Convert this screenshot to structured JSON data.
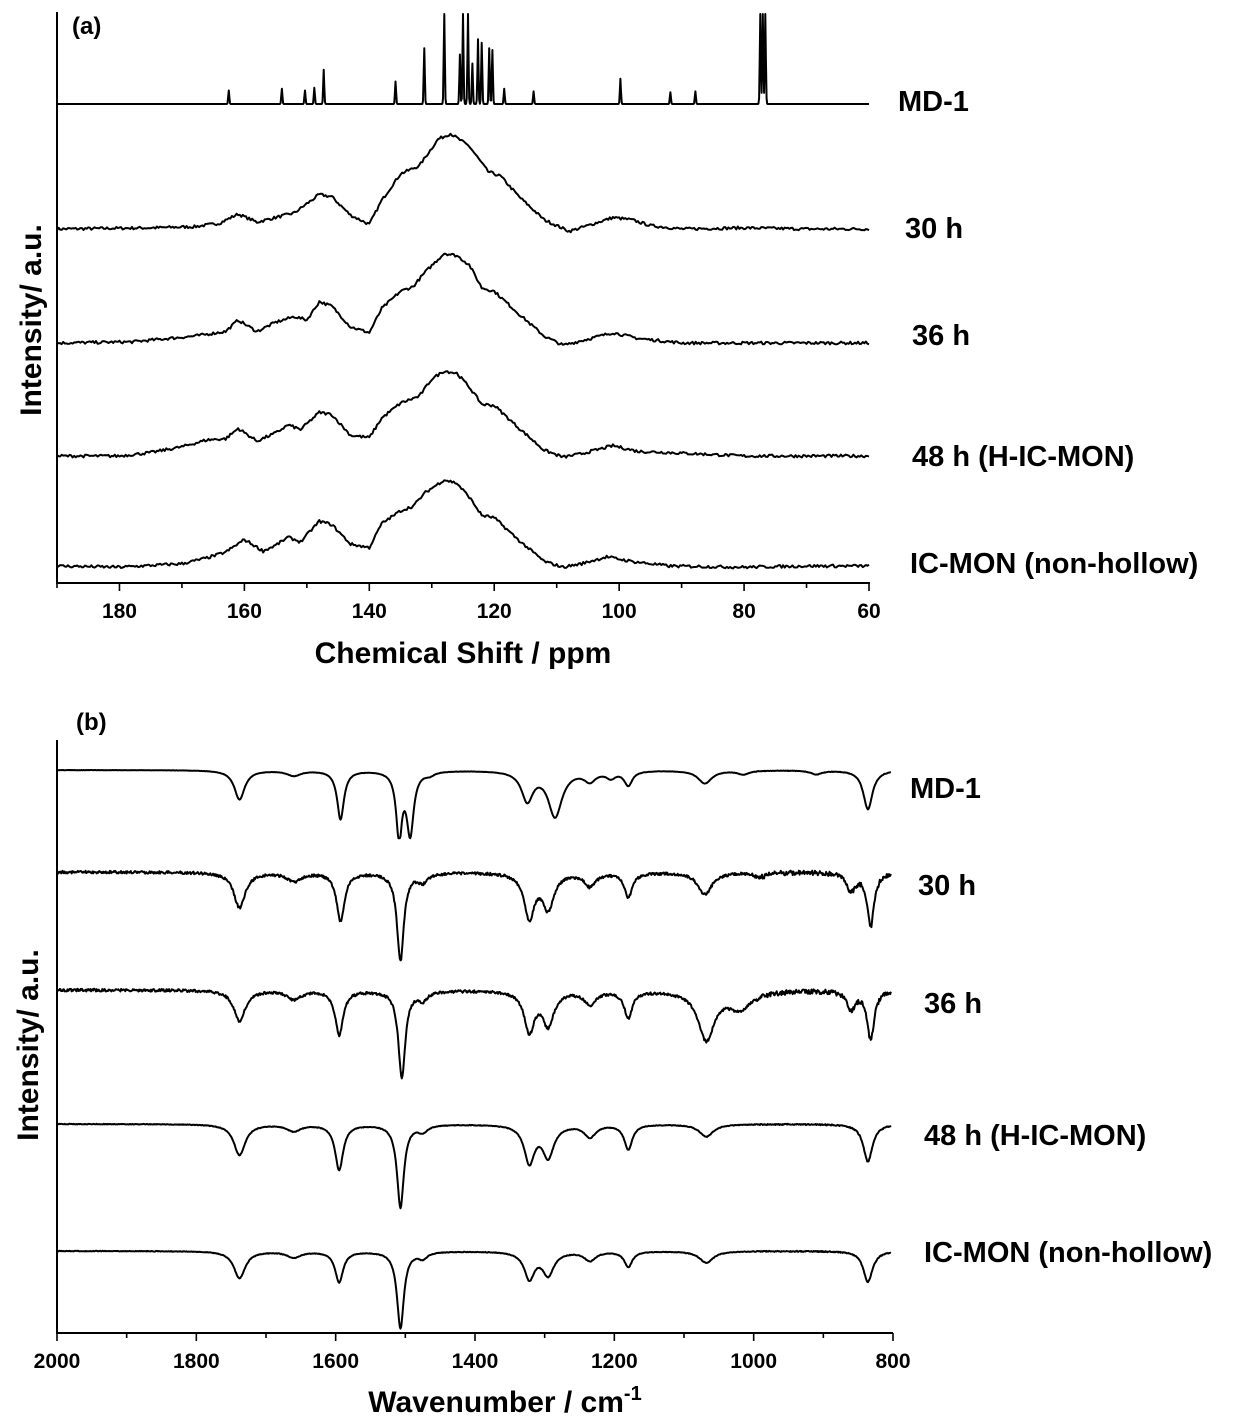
{
  "chart_data": [
    {
      "panel": "(a)",
      "type": "line",
      "xlabel": "Chemical Shift / ppm",
      "ylabel": "Intensity/ a.u.",
      "xlim": [
        190,
        60
      ],
      "x_reversed": true,
      "xticks": [
        180,
        160,
        140,
        120,
        100,
        80,
        60
      ],
      "minor_xtick_step": 10,
      "grid": false,
      "series": [
        {
          "name": "MD-1",
          "peaks": [
            [
              162.5,
              0.15
            ],
            [
              154.0,
              0.17
            ],
            [
              150.3,
              0.15
            ],
            [
              148.8,
              0.18
            ],
            [
              147.3,
              0.38
            ],
            [
              135.8,
              0.25
            ],
            [
              131.2,
              0.62
            ],
            [
              128.0,
              1.0
            ],
            [
              125.5,
              0.55
            ],
            [
              125.0,
              1.0
            ],
            [
              124.2,
              1.0
            ],
            [
              123.5,
              0.45
            ],
            [
              122.6,
              0.72
            ],
            [
              122.0,
              0.68
            ],
            [
              120.8,
              0.62
            ],
            [
              120.3,
              0.6
            ],
            [
              118.4,
              0.17
            ],
            [
              113.7,
              0.14
            ],
            [
              99.8,
              0.28
            ],
            [
              91.8,
              0.13
            ],
            [
              87.8,
              0.14
            ],
            [
              77.4,
              1.0
            ],
            [
              77.0,
              1.0
            ],
            [
              76.6,
              1.0
            ]
          ]
        },
        {
          "name": "30 h",
          "points": [
            [
              190,
              0
            ],
            [
              175,
              0.01
            ],
            [
              168,
              0.02
            ],
            [
              164,
              0.05
            ],
            [
              161,
              0.13
            ],
            [
              158,
              0.06
            ],
            [
              155,
              0.1
            ],
            [
              152,
              0.14
            ],
            [
              148,
              0.3
            ],
            [
              146,
              0.28
            ],
            [
              143,
              0.12
            ],
            [
              140,
              0.04
            ],
            [
              138,
              0.25
            ],
            [
              135,
              0.48
            ],
            [
              132,
              0.55
            ],
            [
              129,
              0.78
            ],
            [
              127,
              0.83
            ],
            [
              124,
              0.72
            ],
            [
              121,
              0.5
            ],
            [
              119,
              0.46
            ],
            [
              116,
              0.28
            ],
            [
              112,
              0.08
            ],
            [
              108,
              -0.02
            ],
            [
              105,
              0.03
            ],
            [
              101,
              0.1
            ],
            [
              98,
              0.08
            ],
            [
              95,
              0.03
            ],
            [
              90,
              0
            ],
            [
              80,
              0.01
            ],
            [
              70,
              0
            ],
            [
              60,
              0
            ]
          ]
        },
        {
          "name": "36 h",
          "points": [
            [
              190,
              0
            ],
            [
              178,
              0.01
            ],
            [
              168,
              0.06
            ],
            [
              163,
              0.1
            ],
            [
              161,
              0.2
            ],
            [
              158,
              0.1
            ],
            [
              155,
              0.18
            ],
            [
              152,
              0.23
            ],
            [
              150,
              0.2
            ],
            [
              148,
              0.36
            ],
            [
              146,
              0.32
            ],
            [
              143,
              0.14
            ],
            [
              140,
              0.09
            ],
            [
              138,
              0.3
            ],
            [
              135,
              0.45
            ],
            [
              133,
              0.49
            ],
            [
              131,
              0.62
            ],
            [
              128,
              0.78
            ],
            [
              126,
              0.76
            ],
            [
              124,
              0.68
            ],
            [
              122,
              0.48
            ],
            [
              120,
              0.45
            ],
            [
              116,
              0.25
            ],
            [
              112,
              0.06
            ],
            [
              109,
              -0.02
            ],
            [
              106,
              0.02
            ],
            [
              101,
              0.09
            ],
            [
              97,
              0.04
            ],
            [
              90,
              0
            ],
            [
              70,
              0
            ],
            [
              60,
              0
            ]
          ]
        },
        {
          "name": "48 h (H-IC-MON)",
          "points": [
            [
              190,
              0
            ],
            [
              180,
              0
            ],
            [
              175,
              0.03
            ],
            [
              170,
              0.08
            ],
            [
              166,
              0.14
            ],
            [
              163,
              0.15
            ],
            [
              161,
              0.24
            ],
            [
              158,
              0.13
            ],
            [
              155,
              0.2
            ],
            [
              153,
              0.27
            ],
            [
              151,
              0.23
            ],
            [
              148,
              0.38
            ],
            [
              146,
              0.36
            ],
            [
              143,
              0.18
            ],
            [
              140,
              0.16
            ],
            [
              138,
              0.33
            ],
            [
              135,
              0.46
            ],
            [
              132,
              0.52
            ],
            [
              130,
              0.67
            ],
            [
              128,
              0.74
            ],
            [
              126,
              0.72
            ],
            [
              124,
              0.6
            ],
            [
              122,
              0.45
            ],
            [
              120,
              0.44
            ],
            [
              116,
              0.24
            ],
            [
              112,
              0.05
            ],
            [
              109,
              -0.01
            ],
            [
              106,
              0.02
            ],
            [
              101,
              0.09
            ],
            [
              97,
              0.04
            ],
            [
              92,
              0.03
            ],
            [
              88,
              0.02
            ],
            [
              80,
              0
            ],
            [
              70,
              0
            ],
            [
              60,
              0
            ]
          ]
        },
        {
          "name": "IC-MON (non-hollow)",
          "points": [
            [
              190,
              0
            ],
            [
              180,
              -0.01
            ],
            [
              170,
              0.02
            ],
            [
              166,
              0.07
            ],
            [
              163,
              0.12
            ],
            [
              160,
              0.23
            ],
            [
              157,
              0.13
            ],
            [
              155,
              0.18
            ],
            [
              153,
              0.25
            ],
            [
              151,
              0.21
            ],
            [
              148,
              0.39
            ],
            [
              146,
              0.36
            ],
            [
              143,
              0.19
            ],
            [
              140,
              0.16
            ],
            [
              138,
              0.37
            ],
            [
              135,
              0.48
            ],
            [
              133,
              0.52
            ],
            [
              131,
              0.64
            ],
            [
              128,
              0.75
            ],
            [
              126,
              0.72
            ],
            [
              124,
              0.6
            ],
            [
              122,
              0.44
            ],
            [
              120,
              0.42
            ],
            [
              116,
              0.22
            ],
            [
              112,
              0.04
            ],
            [
              109,
              -0.01
            ],
            [
              106,
              0.02
            ],
            [
              102,
              0.08
            ],
            [
              98,
              0.04
            ],
            [
              92,
              0
            ],
            [
              80,
              -0.01
            ],
            [
              70,
              0
            ],
            [
              60,
              0
            ]
          ]
        }
      ]
    },
    {
      "panel": "(b)",
      "type": "line",
      "xlabel": "Wavenumber / cm",
      "xlabel_superscript": "-1",
      "ylabel": "Intensity/ a.u.",
      "xlim": [
        2000,
        800
      ],
      "x_reversed": true,
      "xticks": [
        2000,
        1800,
        1600,
        1400,
        1200,
        1000,
        800
      ],
      "minor_xtick_step": 100,
      "grid": false,
      "series": [
        {
          "name": "MD-1",
          "bands": [
            [
              1738,
              0.45,
              9
            ],
            [
              1660,
              0.08,
              12
            ],
            [
              1593,
              0.75,
              6
            ],
            [
              1509,
              1.0,
              5
            ],
            [
              1493,
              0.95,
              6
            ],
            [
              1465,
              0.05,
              8
            ],
            [
              1325,
              0.45,
              10
            ],
            [
              1285,
              0.7,
              12
            ],
            [
              1235,
              0.15,
              10
            ],
            [
              1205,
              0.1,
              8
            ],
            [
              1180,
              0.22,
              7
            ],
            [
              1070,
              0.2,
              12
            ],
            [
              1015,
              0.06,
              10
            ],
            [
              910,
              0.06,
              10
            ],
            [
              836,
              0.6,
              8
            ]
          ]
        },
        {
          "name": "30 h",
          "bands": [
            [
              1738,
              0.4,
              10
            ],
            [
              1660,
              0.1,
              12
            ],
            [
              1593,
              0.55,
              7
            ],
            [
              1507,
              1.0,
              6
            ],
            [
              1475,
              0.1,
              8
            ],
            [
              1322,
              0.5,
              9
            ],
            [
              1295,
              0.4,
              10
            ],
            [
              1235,
              0.15,
              10
            ],
            [
              1180,
              0.28,
              7
            ],
            [
              1070,
              0.25,
              12
            ],
            [
              990,
              0.05,
              10
            ],
            [
              860,
              0.2,
              8
            ],
            [
              832,
              0.6,
              6
            ]
          ]
        },
        {
          "name": "36 h",
          "bands": [
            [
              1738,
              0.35,
              10
            ],
            [
              1660,
              0.1,
              12
            ],
            [
              1595,
              0.5,
              7
            ],
            [
              1505,
              1.0,
              6
            ],
            [
              1475,
              0.1,
              8
            ],
            [
              1322,
              0.45,
              9
            ],
            [
              1295,
              0.38,
              10
            ],
            [
              1235,
              0.15,
              10
            ],
            [
              1180,
              0.3,
              7
            ],
            [
              1068,
              0.55,
              14
            ],
            [
              1020,
              0.2,
              20
            ],
            [
              860,
              0.2,
              8
            ],
            [
              832,
              0.55,
              6
            ]
          ]
        },
        {
          "name": "48 h (H-IC-MON)",
          "bands": [
            [
              1738,
              0.37,
              10
            ],
            [
              1660,
              0.08,
              12
            ],
            [
              1595,
              0.55,
              7
            ],
            [
              1507,
              1.0,
              6
            ],
            [
              1475,
              0.08,
              8
            ],
            [
              1322,
              0.45,
              9
            ],
            [
              1295,
              0.38,
              10
            ],
            [
              1235,
              0.15,
              10
            ],
            [
              1180,
              0.3,
              7
            ],
            [
              1068,
              0.15,
              12
            ],
            [
              836,
              0.45,
              8
            ]
          ]
        },
        {
          "name": "IC-MON (non-hollow)",
          "bands": [
            [
              1738,
              0.35,
              10
            ],
            [
              1660,
              0.08,
              12
            ],
            [
              1595,
              0.4,
              7
            ],
            [
              1507,
              1.0,
              6
            ],
            [
              1475,
              0.08,
              8
            ],
            [
              1322,
              0.35,
              9
            ],
            [
              1295,
              0.3,
              10
            ],
            [
              1235,
              0.12,
              10
            ],
            [
              1180,
              0.2,
              7
            ],
            [
              1068,
              0.15,
              12
            ],
            [
              836,
              0.4,
              8
            ]
          ]
        }
      ]
    }
  ]
}
